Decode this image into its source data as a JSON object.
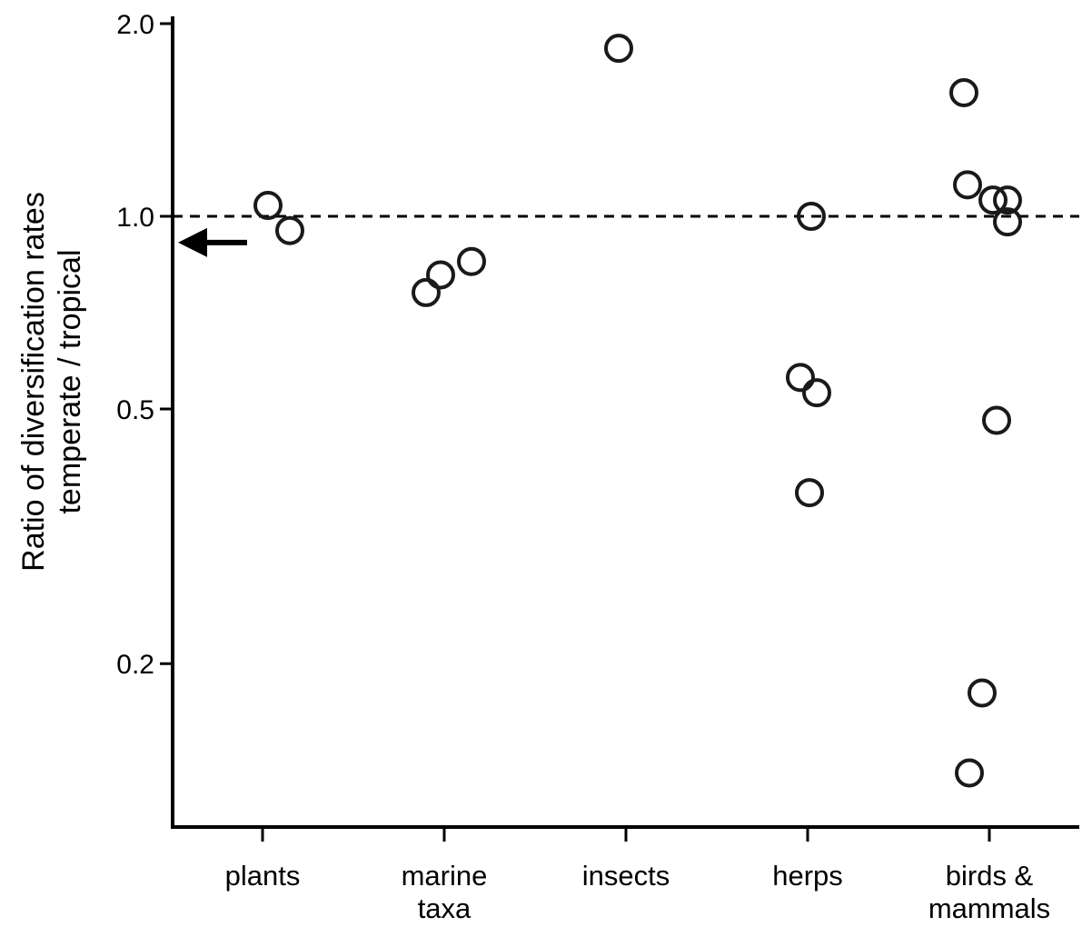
{
  "chart_data": {
    "type": "scatter",
    "xlabel": "",
    "ylabel_line1": "Ratio of diversification rates",
    "ylabel_line2": "temperate / tropical",
    "y_scale": "log",
    "ylim": [
      0.135,
      2.0
    ],
    "yticks": [
      {
        "value": 0.2,
        "label": "0.2"
      },
      {
        "value": 0.5,
        "label": "0.5"
      },
      {
        "value": 1.0,
        "label": "1.0"
      },
      {
        "value": 2.0,
        "label": "2.0"
      }
    ],
    "reference_line": {
      "value": 1.0,
      "style": "dashed"
    },
    "arrow_marker": {
      "value": 0.91,
      "direction": "left"
    },
    "categories": [
      {
        "lines": [
          "plants"
        ]
      },
      {
        "lines": [
          "marine",
          "taxa"
        ]
      },
      {
        "lines": [
          "insects"
        ]
      },
      {
        "lines": [
          "herps"
        ]
      },
      {
        "lines": [
          "birds &",
          "mammals"
        ]
      }
    ],
    "points": [
      {
        "category": 0,
        "offset": 0.03,
        "value": 1.04
      },
      {
        "category": 0,
        "offset": 0.15,
        "value": 0.95
      },
      {
        "category": 1,
        "offset": -0.1,
        "value": 0.76
      },
      {
        "category": 1,
        "offset": -0.02,
        "value": 0.81
      },
      {
        "category": 1,
        "offset": 0.15,
        "value": 0.85
      },
      {
        "category": 2,
        "offset": -0.04,
        "value": 1.83
      },
      {
        "category": 3,
        "offset": -0.04,
        "value": 0.56
      },
      {
        "category": 3,
        "offset": 0.05,
        "value": 0.53
      },
      {
        "category": 3,
        "offset": 0.01,
        "value": 0.37
      },
      {
        "category": 3,
        "offset": 0.02,
        "value": 1.0
      },
      {
        "category": 4,
        "offset": -0.14,
        "value": 1.56
      },
      {
        "category": 4,
        "offset": -0.12,
        "value": 1.12
      },
      {
        "category": 4,
        "offset": 0.02,
        "value": 1.06
      },
      {
        "category": 4,
        "offset": 0.1,
        "value": 1.06
      },
      {
        "category": 4,
        "offset": 0.1,
        "value": 0.98
      },
      {
        "category": 4,
        "offset": 0.04,
        "value": 0.48
      },
      {
        "category": 4,
        "offset": -0.04,
        "value": 0.18
      },
      {
        "category": 4,
        "offset": -0.11,
        "value": 0.135
      }
    ]
  }
}
